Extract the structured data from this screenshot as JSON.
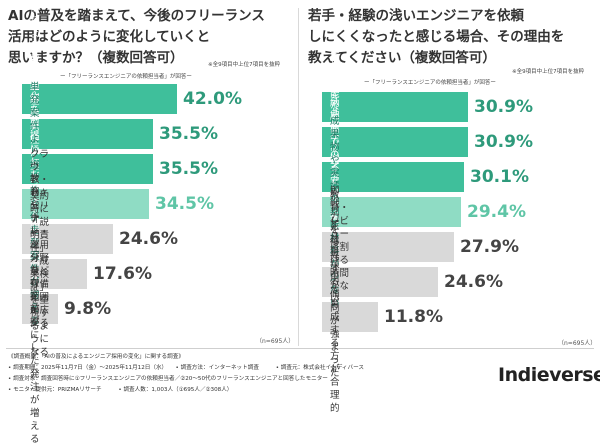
{
  "colors": {
    "top": "#3fbf9b",
    "mid": "#8fdcc4",
    "gray": "#d9d9d9",
    "top_text": "#ffffff",
    "mid_text": "#1a7a62",
    "gray_text": "#333333",
    "value_top": "#2e9a7b",
    "value_mid": "#5fc5a6",
    "value_gray": "#444444"
  },
  "left": {
    "title": "AIの普及を踏まえて、今後のフリーランス\n活用はどのように変化していくと\n思いますか？（複数回答可）",
    "note": "※全9項目中上位7項目を抜粋",
    "respondent": "ー「フリーランスエンジニアの依頼担当者」が回答ー",
    "n": "（n=695人）"
  },
  "right": {
    "title": "若手・経験の浅いエンジニアを依頼\nしにくくなったと感じる場合、その理由を\n教えてください（複数回答可）",
    "note": "※全9項目中上位7項目を抜粋",
    "respondent": "ー「フリーランスエンジニアの依頼担当者」が回答ー",
    "n": "（n=695人）"
  },
  "chart_data": [
    {
      "type": "bar",
      "title": "AIの普及を踏まえて、今後のフリーランス活用はどのように変化していくと思いますか？（複数回答可）",
      "categories": [
        "実装依頼よりも課題解決型の\n依頼が増える",
        "成果物単位の発注が主流になる",
        "AIや自動化を前提にした\nチーム開発が増える",
        "単発案件より、継続的な\n伴走型案件が増える",
        "クラウド・セキュリティ・\n運用分野など守備範囲が広がる",
        "契約時に「説明責任」\n「成果検証」を重視するようになる",
        "教育やナレッジ共有を\n前提にした発注が増える"
      ],
      "values": [
        42.0,
        35.5,
        35.5,
        34.5,
        24.6,
        17.6,
        9.8
      ],
      "value_labels": [
        "42.0%",
        "35.5%",
        "35.5%",
        "34.5%",
        "24.6%",
        "17.6%",
        "9.8%"
      ],
      "tiers": [
        "top",
        "top",
        "top",
        "mid",
        "gray",
        "gray",
        "gray"
      ],
      "xlim": [
        0,
        50
      ]
    },
    {
      "type": "bar",
      "title": "若手・経験の浅いエンジニアを依頼しにくくなったと感じる場合、その理由を教えてください（複数回答可）",
      "categories": [
        "AIで代替可能な作業が増えた",
        "品質や納期面での不安がある",
        "コミュニケーション負担が\n大きい",
        "成果物や実績の判断材料が\n少ない",
        "教育・レビューに割ける\n時間がない",
        "即戦力を優先する傾向が強まった",
        "正社員採用で育成する方が合理的"
      ],
      "values": [
        30.9,
        30.9,
        30.1,
        29.4,
        27.9,
        24.6,
        11.8
      ],
      "value_labels": [
        "30.9%",
        "30.9%",
        "30.1%",
        "29.4%",
        "27.9%",
        "24.6%",
        "11.8%"
      ],
      "tiers": [
        "top",
        "top",
        "top",
        "mid",
        "gray",
        "gray",
        "gray"
      ],
      "xlim": [
        0,
        36
      ]
    }
  ],
  "survey": {
    "line1": "《調査概要：「AIの普及によるエンジニア採用の変化」に関する調査》",
    "line2": "• 調査期間：2025年11月7日（金）～2025年11月12日（水）　　• 調査方法：インターネット調査　　　• 調査元：株式会社インディバース",
    "line3": "• 調査対象：調査回答時に①フリーランスエンジニアの依頼担当者／②20～50代のフリーランスエンジニアと回答したモニター",
    "line4": "• モニター提供元：PRIZMAリサーチ　　　• 調査人数：1,003人（①695人／②308人）"
  },
  "logo": "Indieverse"
}
